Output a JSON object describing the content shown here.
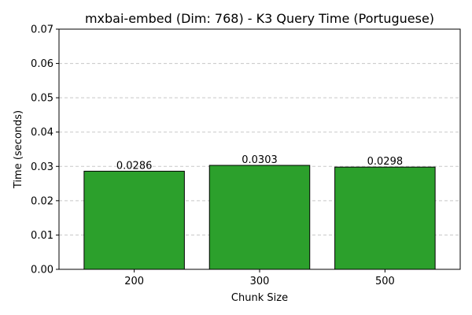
{
  "chart_data": {
    "type": "bar",
    "title": "mxbai-embed (Dim: 768) - K3 Query Time (Portuguese)",
    "xlabel": "Chunk Size",
    "ylabel": "Time (seconds)",
    "categories": [
      "200",
      "300",
      "500"
    ],
    "values": [
      0.0286,
      0.0303,
      0.0298
    ],
    "value_labels": [
      "0.0286",
      "0.0303",
      "0.0298"
    ],
    "ylim": [
      0,
      0.07
    ],
    "yticks": [
      0.0,
      0.01,
      0.02,
      0.03,
      0.04,
      0.05,
      0.06,
      0.07
    ],
    "ytick_labels": [
      "0.00",
      "0.01",
      "0.02",
      "0.03",
      "0.04",
      "0.05",
      "0.06",
      "0.07"
    ],
    "grid": "y-dashed",
    "bar_color": "#2ca02c",
    "edge_color": "#000000",
    "grid_color": "#c8c8c8"
  }
}
